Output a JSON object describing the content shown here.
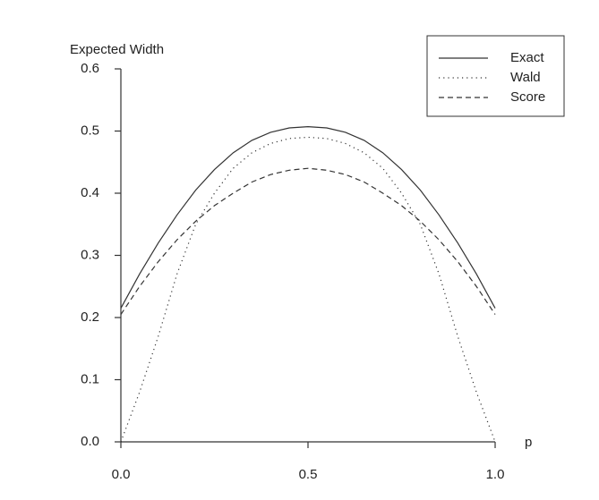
{
  "chart_data": {
    "type": "line",
    "ylabel": "Expected Width",
    "xlabel": "p",
    "x": [
      0,
      0.05,
      0.1,
      0.15,
      0.2,
      0.25,
      0.3,
      0.35,
      0.4,
      0.45,
      0.5,
      0.55,
      0.6,
      0.65,
      0.7,
      0.75,
      0.8,
      0.85,
      0.9,
      0.95,
      1
    ],
    "series": [
      {
        "name": "Exact",
        "color": "#333333",
        "style": "solid",
        "values": [
          0.215,
          0.27,
          0.32,
          0.365,
          0.405,
          0.438,
          0.465,
          0.485,
          0.498,
          0.505,
          0.507,
          0.505,
          0.498,
          0.485,
          0.465,
          0.438,
          0.405,
          0.365,
          0.32,
          0.27,
          0.215
        ]
      },
      {
        "name": "Wald",
        "color": "#333333",
        "style": "dotted",
        "values": [
          0,
          0.08,
          0.17,
          0.27,
          0.35,
          0.4,
          0.44,
          0.465,
          0.48,
          0.488,
          0.49,
          0.488,
          0.48,
          0.465,
          0.44,
          0.4,
          0.35,
          0.27,
          0.17,
          0.08,
          0
        ]
      },
      {
        "name": "Score",
        "color": "#333333",
        "style": "dashed",
        "values": [
          0.205,
          0.25,
          0.29,
          0.325,
          0.355,
          0.38,
          0.4,
          0.418,
          0.43,
          0.437,
          0.44,
          0.437,
          0.43,
          0.418,
          0.4,
          0.38,
          0.355,
          0.325,
          0.29,
          0.25,
          0.205
        ]
      }
    ],
    "xlim": [
      0,
      1
    ],
    "xticks": [
      {
        "value": 0,
        "label": "0.0"
      },
      0.5,
      {
        "value": 1,
        "label": "1.0"
      }
    ],
    "ylim": [
      0,
      0.6
    ],
    "yticks": [
      {
        "value": 0,
        "label": "0.0"
      },
      0.1,
      0.2,
      0.3,
      0.4,
      0.5,
      0.6
    ],
    "legend": "upper right",
    "grid": false
  }
}
